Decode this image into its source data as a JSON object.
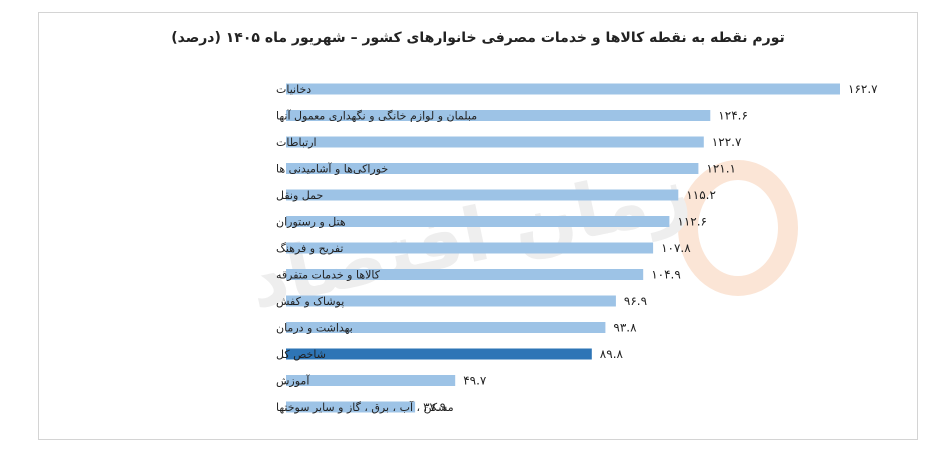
{
  "colors": {
    "bar": "#9dc3e6",
    "highlight_bar": "#2e75b6",
    "watermark": "#eeeeee",
    "watermark_accent": "#fbe5d6",
    "frame": "#d4d4d4"
  },
  "chart_data": {
    "type": "bar",
    "orientation": "horizontal",
    "title": "تورم نقطه به نقطه کالاها و خدمات مصرفی خانوارهای کشور – شهریور ماه ۱۴۰۵ (درصد)",
    "xlabel": "",
    "ylabel": "",
    "xlim": [
      0,
      170
    ],
    "grid": false,
    "legend": "none",
    "highlight_category": "شاخص کل",
    "categories": [
      "دخانیات",
      "مبلمان و لوازم خانگی و نگهداری معمول آنها",
      "ارتباطات",
      "خوراکی‌ها و آشامیدنی ها",
      "حمل ونقل",
      "هتل و رستوران",
      "تفریح و فرهنگ",
      "کالاها و خدمات متفرقه",
      "پوشاک و کفش",
      "بهداشت و درمان",
      "شاخص کل",
      "آموزش",
      "مسکن ، آب ، برق ، گاز و سایر سوختها"
    ],
    "values": [
      162.7,
      124.6,
      122.7,
      121.1,
      115.2,
      112.6,
      107.8,
      104.9,
      96.9,
      93.8,
      89.8,
      49.7,
      37.9
    ],
    "value_labels": [
      "۱۶۲.۷",
      "۱۲۴.۶",
      "۱۲۲.۷",
      "۱۲۱.۱",
      "۱۱۵.۲",
      "۱۱۲.۶",
      "۱۰۷.۸",
      "۱۰۴.۹",
      "۹۶.۹",
      "۹۳.۸",
      "۸۹.۸",
      "۴۹.۷",
      "۳۷.۹"
    ]
  },
  "watermark": {
    "text": "زمان اقتصاد"
  }
}
